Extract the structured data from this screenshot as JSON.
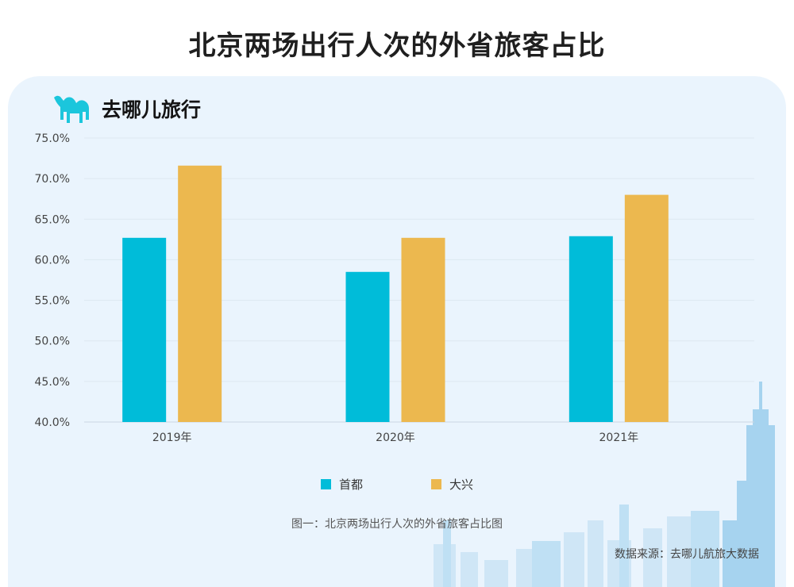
{
  "page": {
    "title": "北京两场出行人次的外省旅客占比"
  },
  "brand": {
    "name": "去哪儿旅行",
    "logo_icon": "camel-icon",
    "logo_color": "#1bc6dc"
  },
  "chart_data": {
    "type": "bar",
    "title": "",
    "categories": [
      "2019年",
      "2020年",
      "2021年"
    ],
    "series": [
      {
        "name": "首都",
        "color": "#00bcd9",
        "values": [
          62.7,
          58.5,
          62.9
        ]
      },
      {
        "name": "大兴",
        "color": "#ecb84f",
        "values": [
          71.6,
          62.7,
          68.0
        ]
      }
    ],
    "ylim": [
      40.0,
      75.0
    ],
    "yticks": [
      "40.0%",
      "45.0%",
      "50.0%",
      "55.0%",
      "60.0%",
      "65.0%",
      "70.0%",
      "75.0%"
    ],
    "grid": true,
    "legend": "bottom-center"
  },
  "caption": "图一：北京两场出行人次的外省旅客占比图",
  "source": "数据来源：去哪儿航旅大数据"
}
